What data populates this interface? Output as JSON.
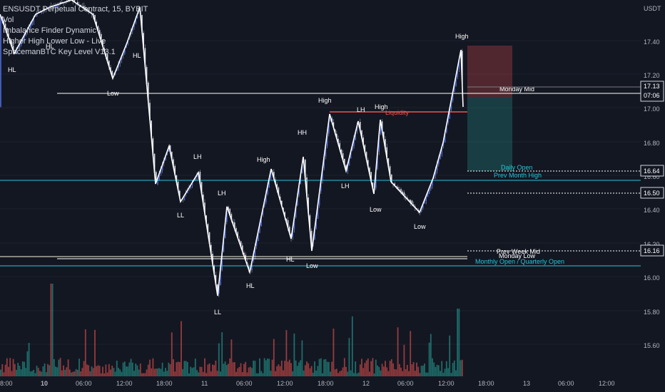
{
  "legend": {
    "symbol": "ENSUSDT Perpetual Contract, 15, BYBIT",
    "indicators": [
      "Vol",
      "Imbalance Finder Dynamic",
      "Higher High Lower Low - Live",
      "SpacemanBTC Key Level V13.1"
    ]
  },
  "price_axis": {
    "currency": "USDT",
    "ticks": [
      "17.40",
      "17.20",
      "17.00",
      "16.80",
      "16.60",
      "16.40",
      "16.20",
      "16.00",
      "15.80",
      "15.60"
    ]
  },
  "badges": {
    "current_price": "17.13",
    "countdown": "07:06",
    "level_1": "16.64",
    "level_2": "16.50",
    "level_3": "16.16"
  },
  "time_axis": [
    "8:00",
    "10",
    "06:00",
    "12:00",
    "18:00",
    "11",
    "06:00",
    "12:00",
    "18:00",
    "12",
    "06:00",
    "12:00",
    "18:00",
    "13",
    "06:00",
    "12:00"
  ],
  "key_levels": {
    "monday_mid": "Monday Mid",
    "daily_open": "Daily Open",
    "prev_month_high": "Prev Month High",
    "prev_week_mid": "Prev Week Mid",
    "monday_low": "Monday Low",
    "monthly_quarterly_open": "Monthly Open / Quarterly Open",
    "liquidity": "Liquidity"
  },
  "swing_labels": [
    {
      "text": "HL"
    },
    {
      "text": "HL"
    },
    {
      "text": "HL"
    },
    {
      "text": "Low"
    },
    {
      "text": "LH"
    },
    {
      "text": "LL"
    },
    {
      "text": "LH"
    },
    {
      "text": "High"
    },
    {
      "text": "LL"
    },
    {
      "text": "HL"
    },
    {
      "text": "HL"
    },
    {
      "text": "Low"
    },
    {
      "text": "HH"
    },
    {
      "text": "High"
    },
    {
      "text": "LH"
    },
    {
      "text": "LH"
    },
    {
      "text": "High"
    },
    {
      "text": "Low"
    },
    {
      "text": "Low"
    },
    {
      "text": "High"
    }
  ],
  "colors": {
    "background": "#131722",
    "up": "#26a69a",
    "down": "#ef5350",
    "level_teal": "#26c6da",
    "level_white": "#ffffff",
    "liquidity": "#ef5350"
  },
  "icons": [
    "close-icon"
  ]
}
